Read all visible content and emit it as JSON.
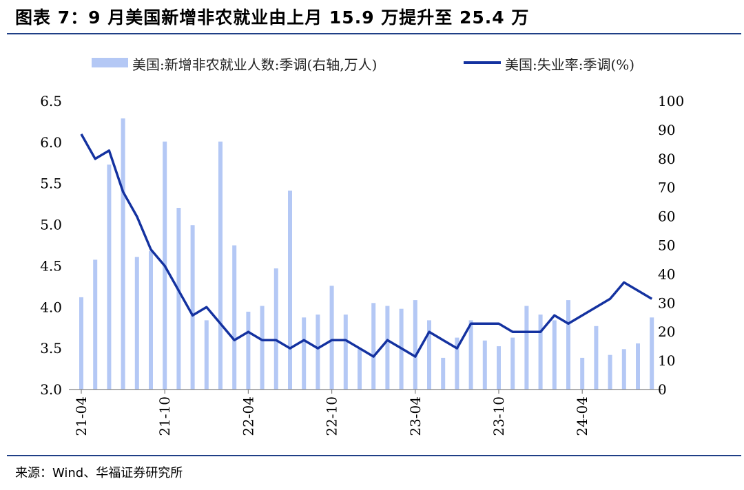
{
  "figure": {
    "title": "图表 7：9 月美国新增非农就业由上月 15.9 万提升至 25.4 万",
    "source": "来源：Wind、华福证券研究所"
  },
  "chart_data": {
    "type": "bar+line",
    "legend": [
      {
        "label": "美国:新增非农就业人数:季调(右轴,万人)",
        "kind": "bar",
        "color": "#b4c8f5"
      },
      {
        "label": "美国:失业率:季调(%)",
        "kind": "line",
        "color": "#1432a0"
      }
    ],
    "x_tick_labels": [
      "21-04",
      "21-10",
      "22-04",
      "22-10",
      "23-04",
      "23-10",
      "24-04"
    ],
    "y_left": {
      "ticks": [
        "6.5",
        "6.0",
        "5.5",
        "5.0",
        "4.5",
        "4.0",
        "3.5",
        "3.0"
      ],
      "range": [
        3.0,
        6.5
      ]
    },
    "y_right": {
      "ticks": [
        "100",
        "90",
        "80",
        "70",
        "60",
        "50",
        "40",
        "30",
        "20",
        "10",
        "0"
      ],
      "range": [
        0,
        100
      ]
    },
    "months": [
      "21-04",
      "21-05",
      "21-06",
      "21-07",
      "21-08",
      "21-09",
      "21-10",
      "21-11",
      "21-12",
      "22-01",
      "22-02",
      "22-03",
      "22-04",
      "22-05",
      "22-06",
      "22-07",
      "22-08",
      "22-09",
      "22-10",
      "22-11",
      "22-12",
      "23-01",
      "23-02",
      "23-03",
      "23-04",
      "23-05",
      "23-06",
      "23-07",
      "23-08",
      "23-09",
      "23-10",
      "23-11",
      "23-12",
      "24-01",
      "24-02",
      "24-03",
      "24-04",
      "24-05",
      "24-06",
      "24-07",
      "24-08",
      "24-09"
    ],
    "series": [
      {
        "name": "美国:新增非农就业人数:季调(右轴,万人)",
        "axis": "right",
        "values": [
          32,
          45,
          78,
          94,
          46,
          48,
          86,
          63,
          57,
          24,
          86,
          50,
          27,
          29,
          42,
          69,
          25,
          26,
          36,
          26,
          14,
          30,
          29,
          28,
          31,
          24,
          11,
          18,
          24,
          17,
          15,
          18,
          29,
          26,
          24,
          31,
          11,
          22,
          12,
          14,
          16,
          25
        ]
      },
      {
        "name": "美国:失业率:季调(%)",
        "axis": "left",
        "values": [
          6.1,
          5.8,
          5.9,
          5.4,
          5.1,
          4.7,
          4.5,
          4.2,
          3.9,
          4.0,
          3.8,
          3.6,
          3.7,
          3.6,
          3.6,
          3.5,
          3.6,
          3.5,
          3.6,
          3.6,
          3.5,
          3.4,
          3.6,
          3.5,
          3.4,
          3.7,
          3.6,
          3.5,
          3.8,
          3.8,
          3.8,
          3.7,
          3.7,
          3.7,
          3.9,
          3.8,
          3.9,
          4.0,
          4.1,
          4.3,
          4.2,
          4.1
        ]
      }
    ]
  }
}
